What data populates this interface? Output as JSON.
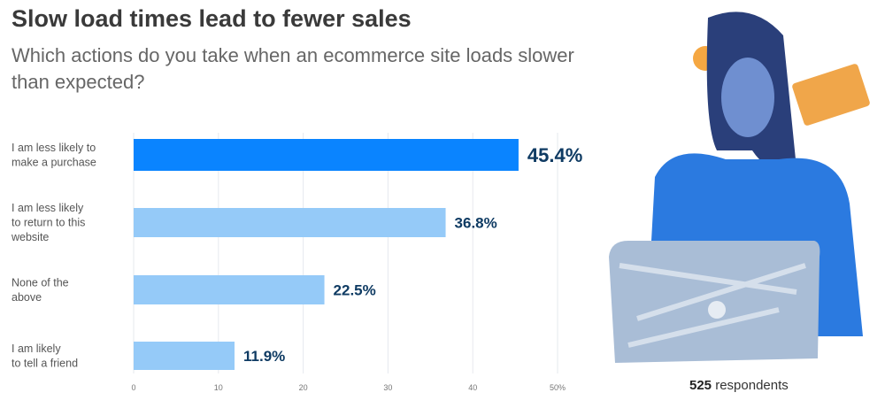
{
  "title": "Slow load times lead to fewer sales",
  "subtitle": "Which actions do you take when an ecommerce site loads slower than expected?",
  "footer": {
    "count": "525",
    "label": "respondents"
  },
  "colors": {
    "highlight": "#0a84ff",
    "bar": "#95caf8",
    "label": "#0f3b63",
    "grid": "#e6e9ee"
  },
  "chart_data": {
    "type": "bar",
    "orientation": "horizontal",
    "title": "Slow load times lead to fewer sales",
    "subtitle": "Which actions do you take when an ecommerce site loads slower than expected?",
    "categories": [
      [
        "I am less likely to",
        "make a purchase"
      ],
      [
        "I am less likely",
        "to return to this",
        "website"
      ],
      [
        "None of the",
        "above"
      ],
      [
        "I am likely",
        "to tell a friend"
      ]
    ],
    "values": [
      45.4,
      36.8,
      22.5,
      11.9
    ],
    "value_labels": [
      "45.4%",
      "36.8%",
      "22.5%",
      "11.9%"
    ],
    "xlim": [
      0,
      50
    ],
    "xticks": [
      0,
      10,
      20,
      30,
      40,
      50
    ],
    "xtick_labels": [
      "0",
      "10",
      "20",
      "30",
      "40",
      "50%"
    ],
    "grid": true,
    "highlighted_index": 0
  }
}
